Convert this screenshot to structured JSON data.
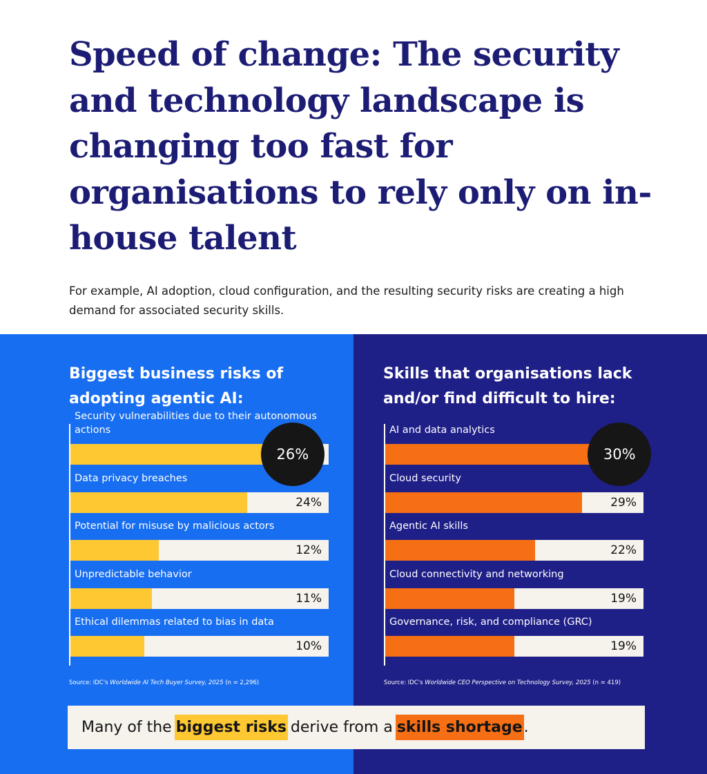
{
  "header": {
    "title_bold": "Speed of change:",
    "title_rest": "The security and technology landscape is changing too fast for organisations to rely only on in-house talent",
    "subtitle": "For example, AI adoption, cloud configuration, and the resulting security risks are creating a high demand for associated security skills."
  },
  "colors": {
    "title": "#1c1c74",
    "left_panel": "#186ef0",
    "right_panel": "#1f1f88",
    "yellow": "#fec832",
    "orange": "#f66f14",
    "track": "#f6f2ec",
    "bubble": "#161616"
  },
  "chart_data": [
    {
      "type": "bar",
      "orientation": "horizontal",
      "title": "Biggest business risks of adopting agentic AI:",
      "categories": [
        "Security vulnerabilities due to their autonomous actions",
        "Data privacy breaches",
        "Potential for misuse by malicious actors",
        "Unpredictable behavior",
        "Ethical dilemmas related to bias in data"
      ],
      "values": [
        26,
        24,
        12,
        11,
        10
      ],
      "labels": [
        "26%",
        "24%",
        "12%",
        "11%",
        "10%"
      ],
      "xlim": [
        0,
        35
      ],
      "highlight": "26%",
      "source_prefix": "Source: IDC's ",
      "source_title": "Worldwide AI Tech Buyer Survey, 2025",
      "source_suffix": " (n = 2,296)"
    },
    {
      "type": "bar",
      "orientation": "horizontal",
      "title": "Skills that organisations lack and/or find difficult to hire:",
      "categories": [
        "AI and data analytics",
        "Cloud security",
        "Agentic AI skills",
        "Cloud connectivity and networking",
        "Governance, risk, and compliance (GRC)"
      ],
      "values": [
        30,
        29,
        22,
        19,
        19
      ],
      "labels": [
        "30%",
        "29%",
        "22%",
        "19%",
        "19%"
      ],
      "xlim": [
        0,
        38
      ],
      "highlight": "30%",
      "source_prefix": "Source: IDC's ",
      "source_title": "Worldwide CEO Perspective on Technology Survey, 2025",
      "source_suffix": " (n = 419)"
    }
  ],
  "callout": {
    "part1": "Many of the",
    "hl1": "biggest risks",
    "part2": "derive from a",
    "hl2": "skills shortage",
    "part3": "."
  }
}
